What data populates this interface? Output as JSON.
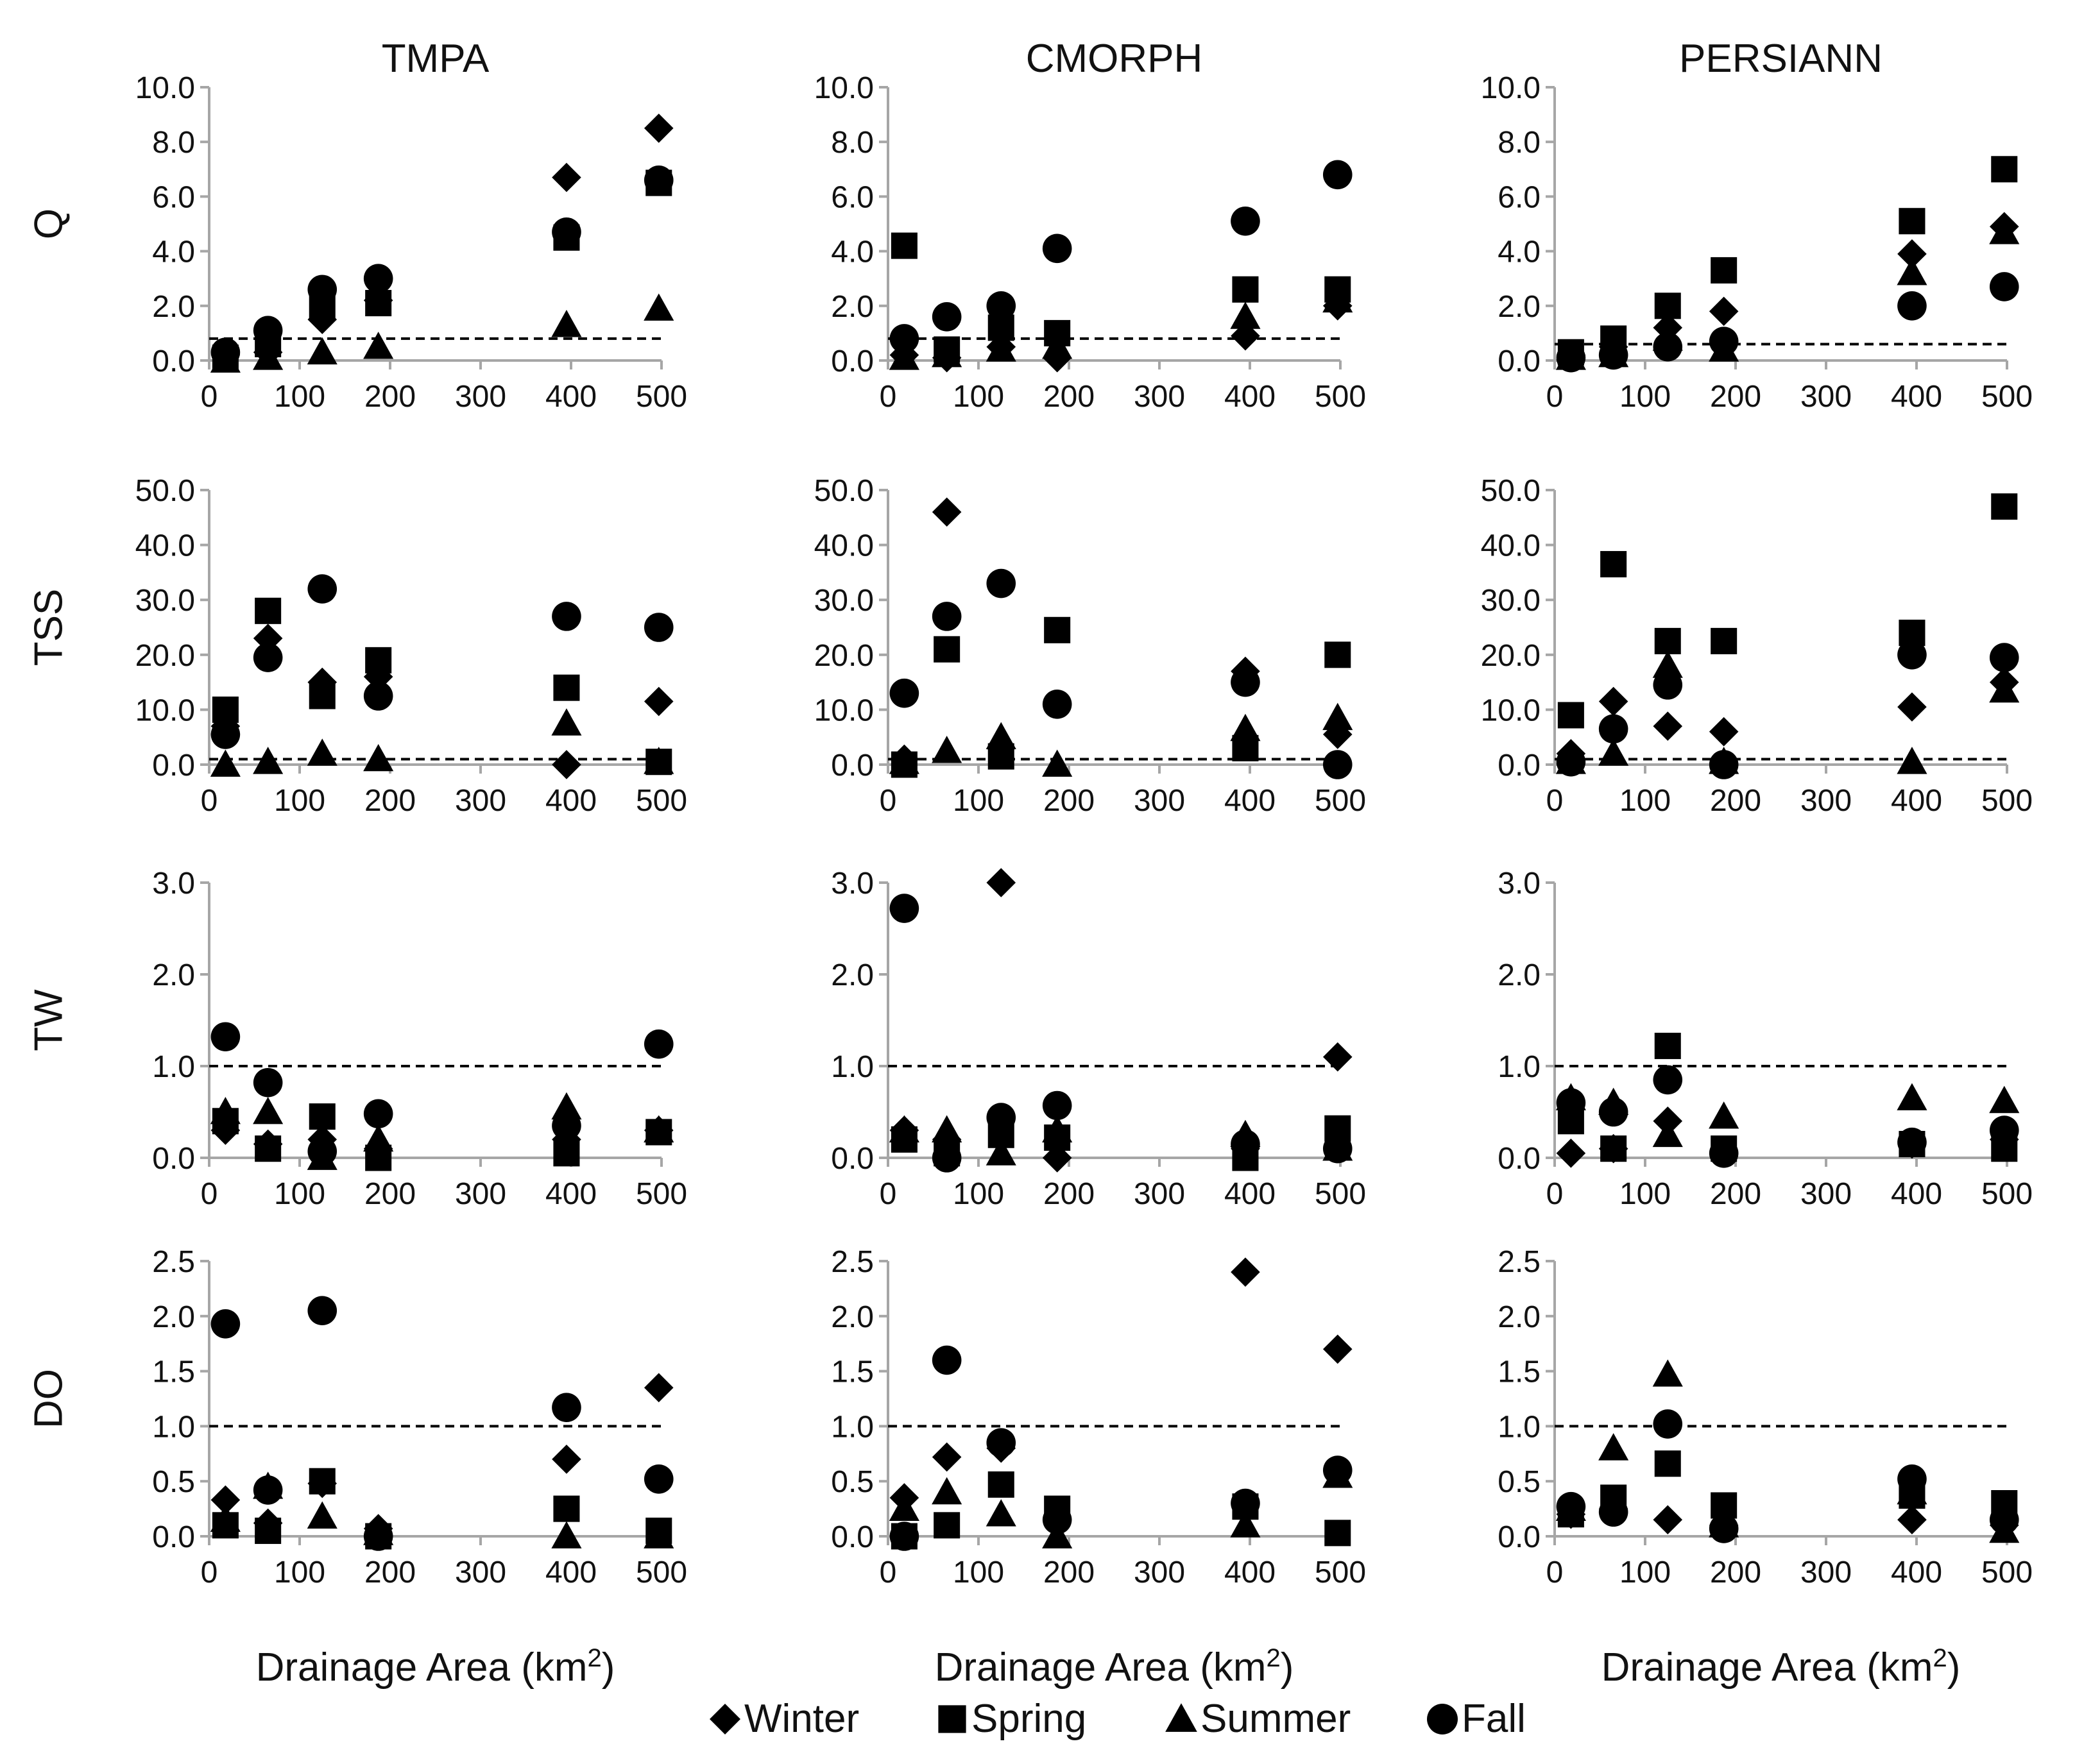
{
  "colors": {
    "axis": "#a6a6a6",
    "marker": "#000000",
    "reference": "#000000",
    "text": "#111111"
  },
  "legend": [
    {
      "season": "Winter",
      "label": "Winter",
      "marker": "diamond"
    },
    {
      "season": "Spring",
      "label": "Spring",
      "marker": "square"
    },
    {
      "season": "Summer",
      "label": "Summer",
      "marker": "triangle"
    },
    {
      "season": "Fall",
      "label": "Fall",
      "marker": "circle"
    }
  ],
  "columns": [
    "TMPA",
    "CMORPH",
    "PERSIANN"
  ],
  "rows": [
    "Q",
    "TSS",
    "TW",
    "DO"
  ],
  "xlabel": {
    "main": "Drainage Area (km",
    "sup": "2",
    "end": ")"
  },
  "chart_data": [
    {
      "id": "Q-TMPA",
      "type": "scatter",
      "title": "TMPA",
      "ylabel": "Q",
      "xlabel": "Drainage Area (km2)",
      "xlim": [
        0,
        500
      ],
      "ylim": [
        0,
        10
      ],
      "xticks": [
        "0",
        "100",
        "200",
        "300",
        "400",
        "500"
      ],
      "yticks": [
        "0.0",
        "2.0",
        "4.0",
        "6.0",
        "8.0",
        "10.0"
      ],
      "reference_line": 0.8,
      "x": [
        18,
        65,
        125,
        187,
        395,
        497
      ],
      "series": [
        {
          "name": "Winter",
          "values": [
            0.2,
            0.3,
            1.5,
            2.2,
            6.7,
            8.5
          ]
        },
        {
          "name": "Spring",
          "values": [
            0.1,
            0.6,
            2.0,
            2.1,
            4.5,
            6.5
          ]
        },
        {
          "name": "Summer",
          "values": [
            0.0,
            0.1,
            0.3,
            0.5,
            1.3,
            1.9
          ]
        },
        {
          "name": "Fall",
          "values": [
            0.3,
            1.1,
            2.6,
            3.0,
            4.7,
            6.6
          ]
        }
      ]
    },
    {
      "id": "Q-CMORPH",
      "type": "scatter",
      "title": "CMORPH",
      "ylabel": "",
      "xlabel": "Drainage Area (km2)",
      "xlim": [
        0,
        500
      ],
      "ylim": [
        0,
        10
      ],
      "xticks": [
        "0",
        "100",
        "200",
        "300",
        "400",
        "500"
      ],
      "yticks": [
        "0.0",
        "2.0",
        "4.0",
        "6.0",
        "8.0",
        "10.0"
      ],
      "reference_line": 0.8,
      "x": [
        18,
        65,
        125,
        187,
        395,
        497
      ],
      "series": [
        {
          "name": "Winter",
          "values": [
            0.2,
            0.1,
            0.5,
            0.1,
            0.9,
            2.0
          ]
        },
        {
          "name": "Spring",
          "values": [
            4.2,
            0.4,
            1.2,
            1.0,
            2.6,
            2.6
          ]
        },
        {
          "name": "Summer",
          "values": [
            0.1,
            0.2,
            0.4,
            0.5,
            1.6,
            2.2
          ]
        },
        {
          "name": "Fall",
          "values": [
            0.8,
            1.6,
            2.0,
            4.1,
            5.1,
            6.8
          ]
        }
      ]
    },
    {
      "id": "Q-PERSIANN",
      "type": "scatter",
      "title": "PERSIANN",
      "ylabel": "",
      "xlabel": "Drainage Area (km2)",
      "xlim": [
        0,
        500
      ],
      "ylim": [
        0,
        10
      ],
      "xticks": [
        "0",
        "100",
        "200",
        "300",
        "400",
        "500"
      ],
      "yticks": [
        "0.0",
        "2.0",
        "4.0",
        "6.0",
        "8.0",
        "10.0"
      ],
      "reference_line": 0.6,
      "x": [
        18,
        65,
        125,
        187,
        395,
        497
      ],
      "series": [
        {
          "name": "Winter",
          "values": [
            0.2,
            0.5,
            1.2,
            1.8,
            3.9,
            4.9
          ]
        },
        {
          "name": "Spring",
          "values": [
            0.3,
            0.8,
            2.0,
            3.3,
            5.1,
            7.0
          ]
        },
        {
          "name": "Summer",
          "values": [
            0.1,
            0.2,
            0.8,
            0.4,
            3.2,
            4.7
          ]
        },
        {
          "name": "Fall",
          "values": [
            0.1,
            0.2,
            0.5,
            0.7,
            2.0,
            2.7
          ]
        }
      ]
    },
    {
      "id": "TSS-TMPA",
      "type": "scatter",
      "title": "",
      "ylabel": "TSS",
      "xlabel": "Drainage Area (km2)",
      "xlim": [
        0,
        500
      ],
      "ylim": [
        0,
        50
      ],
      "xticks": [
        "0",
        "100",
        "200",
        "300",
        "400",
        "500"
      ],
      "yticks": [
        "0.0",
        "10.0",
        "20.0",
        "30.0",
        "40.0",
        "50.0"
      ],
      "reference_line": 1.0,
      "x": [
        18,
        65,
        125,
        187,
        395,
        497
      ],
      "series": [
        {
          "name": "Winter",
          "values": [
            7.0,
            23.0,
            15.0,
            16.0,
            0.0,
            11.5
          ]
        },
        {
          "name": "Spring",
          "values": [
            10.0,
            28.0,
            12.5,
            19.0,
            14.0,
            0.5
          ]
        },
        {
          "name": "Summer",
          "values": [
            0.0,
            0.5,
            2.0,
            1.0,
            7.5,
            0.5
          ]
        },
        {
          "name": "Fall",
          "values": [
            5.5,
            19.5,
            32.0,
            12.5,
            27.0,
            25.0
          ]
        }
      ]
    },
    {
      "id": "TSS-CMORPH",
      "type": "scatter",
      "title": "",
      "ylabel": "",
      "xlabel": "Drainage Area (km2)",
      "xlim": [
        0,
        500
      ],
      "ylim": [
        0,
        50
      ],
      "xticks": [
        "0",
        "100",
        "200",
        "300",
        "400",
        "500"
      ],
      "yticks": [
        "0.0",
        "10.0",
        "20.0",
        "30.0",
        "40.0",
        "50.0"
      ],
      "reference_line": 1.0,
      "x": [
        18,
        65,
        125,
        187,
        395,
        497
      ],
      "series": [
        {
          "name": "Winter",
          "values": [
            1.0,
            46.0,
            3.0,
            11.0,
            17.0,
            5.5
          ]
        },
        {
          "name": "Spring",
          "values": [
            0.0,
            21.0,
            1.5,
            24.5,
            3.0,
            20.0
          ]
        },
        {
          "name": "Summer",
          "values": [
            0.5,
            2.5,
            5.0,
            0.0,
            6.5,
            8.5
          ]
        },
        {
          "name": "Fall",
          "values": [
            13.0,
            27.0,
            33.0,
            11.0,
            15.0,
            0.0
          ]
        }
      ]
    },
    {
      "id": "TSS-PERSIANN",
      "type": "scatter",
      "title": "",
      "ylabel": "",
      "xlabel": "Drainage Area (km2)",
      "xlim": [
        0,
        500
      ],
      "ylim": [
        0,
        50
      ],
      "xticks": [
        "0",
        "100",
        "200",
        "300",
        "400",
        "500"
      ],
      "yticks": [
        "0.0",
        "10.0",
        "20.0",
        "30.0",
        "40.0",
        "50.0"
      ],
      "reference_line": 1.0,
      "x": [
        18,
        65,
        125,
        187,
        395,
        497
      ],
      "series": [
        {
          "name": "Winter",
          "values": [
            2.0,
            11.5,
            7.0,
            6.0,
            10.5,
            15.0
          ]
        },
        {
          "name": "Spring",
          "values": [
            9.0,
            36.5,
            22.5,
            22.5,
            24.0,
            47.0
          ]
        },
        {
          "name": "Summer",
          "values": [
            0.5,
            2.0,
            18.0,
            0.5,
            0.5,
            13.5
          ]
        },
        {
          "name": "Fall",
          "values": [
            0.5,
            6.5,
            14.5,
            0.0,
            20.0,
            19.5
          ]
        }
      ]
    },
    {
      "id": "TW-TMPA",
      "type": "scatter",
      "title": "",
      "ylabel": "TW",
      "xlabel": "Drainage Area (km2)",
      "xlim": [
        0,
        500
      ],
      "ylim": [
        0,
        3
      ],
      "xticks": [
        "0",
        "100",
        "200",
        "300",
        "400",
        "500"
      ],
      "yticks": [
        "0.0",
        "1.0",
        "2.0",
        "3.0"
      ],
      "reference_line": 1.0,
      "x": [
        18,
        65,
        125,
        187,
        395,
        497
      ],
      "series": [
        {
          "name": "Winter",
          "values": [
            0.3,
            0.15,
            0.2,
            0.1,
            0.2,
            0.3
          ]
        },
        {
          "name": "Spring",
          "values": [
            0.4,
            0.1,
            0.45,
            0.0,
            0.05,
            0.28
          ]
        },
        {
          "name": "Summer",
          "values": [
            0.5,
            0.5,
            0.0,
            0.2,
            0.55,
            0.3
          ]
        },
        {
          "name": "Fall",
          "values": [
            1.32,
            0.82,
            0.07,
            0.48,
            0.35,
            1.24
          ]
        }
      ]
    },
    {
      "id": "TW-CMORPH",
      "type": "scatter",
      "title": "",
      "ylabel": "",
      "xlabel": "Drainage Area (km2)",
      "xlim": [
        0,
        500
      ],
      "ylim": [
        0,
        3
      ],
      "xticks": [
        "0",
        "100",
        "200",
        "300",
        "400",
        "500"
      ],
      "yticks": [
        "0.0",
        "1.0",
        "2.0",
        "3.0"
      ],
      "reference_line": 1.0,
      "x": [
        18,
        65,
        125,
        187,
        395,
        497
      ],
      "series": [
        {
          "name": "Winter",
          "values": [
            0.3,
            0.2,
            3.0,
            0.0,
            0.1,
            1.1
          ]
        },
        {
          "name": "Spring",
          "values": [
            0.2,
            0.05,
            0.25,
            0.22,
            0.0,
            0.32
          ]
        },
        {
          "name": "Summer",
          "values": [
            0.3,
            0.3,
            0.05,
            0.3,
            0.25,
            0.1
          ]
        },
        {
          "name": "Fall",
          "values": [
            2.72,
            0.0,
            0.44,
            0.57,
            0.15,
            0.1
          ]
        }
      ]
    },
    {
      "id": "TW-PERSIANN",
      "type": "scatter",
      "title": "",
      "ylabel": "",
      "xlabel": "Drainage Area (km2)",
      "xlim": [
        0,
        500
      ],
      "ylim": [
        0,
        3
      ],
      "xticks": [
        "0",
        "100",
        "200",
        "300",
        "400",
        "500"
      ],
      "yticks": [
        "0.0",
        "1.0",
        "2.0",
        "3.0"
      ],
      "reference_line": 1.0,
      "x": [
        18,
        65,
        125,
        187,
        395,
        497
      ],
      "series": [
        {
          "name": "Winter",
          "values": [
            0.05,
            0.1,
            0.4,
            0.05,
            0.15,
            0.2
          ]
        },
        {
          "name": "Spring",
          "values": [
            0.4,
            0.1,
            1.22,
            0.1,
            0.15,
            0.1
          ]
        },
        {
          "name": "Summer",
          "values": [
            0.65,
            0.6,
            0.25,
            0.45,
            0.65,
            0.62
          ]
        },
        {
          "name": "Fall",
          "values": [
            0.6,
            0.5,
            0.85,
            0.05,
            0.17,
            0.3
          ]
        }
      ]
    },
    {
      "id": "DO-TMPA",
      "type": "scatter",
      "title": "",
      "ylabel": "DO",
      "xlabel": "Drainage Area (km2)",
      "xlim": [
        0,
        500
      ],
      "ylim": [
        0,
        2.5
      ],
      "xticks": [
        "0",
        "100",
        "200",
        "300",
        "400",
        "500"
      ],
      "yticks": [
        "0.0",
        "0.5",
        "1.0",
        "1.5",
        "2.0",
        "2.5"
      ],
      "reference_line": 1.0,
      "x": [
        18,
        65,
        125,
        187,
        395,
        497
      ],
      "series": [
        {
          "name": "Winter",
          "values": [
            0.33,
            0.12,
            0.48,
            0.07,
            0.7,
            1.35
          ]
        },
        {
          "name": "Spring",
          "values": [
            0.1,
            0.05,
            0.5,
            0.0,
            0.25,
            0.05
          ]
        },
        {
          "name": "Summer",
          "values": [
            0.15,
            0.45,
            0.18,
            0.03,
            0.0,
            0.0
          ]
        },
        {
          "name": "Fall",
          "values": [
            1.93,
            0.42,
            2.05,
            0.0,
            1.17,
            0.52
          ]
        }
      ]
    },
    {
      "id": "DO-CMORPH",
      "type": "scatter",
      "title": "",
      "ylabel": "",
      "xlabel": "Drainage Area (km2)",
      "xlim": [
        0,
        500
      ],
      "ylim": [
        0,
        2.5
      ],
      "xticks": [
        "0",
        "100",
        "200",
        "300",
        "400",
        "500"
      ],
      "yticks": [
        "0.0",
        "0.5",
        "1.0",
        "1.5",
        "2.0",
        "2.5"
      ],
      "reference_line": 1.0,
      "x": [
        18,
        65,
        125,
        187,
        395,
        497
      ],
      "series": [
        {
          "name": "Winter",
          "values": [
            0.35,
            0.72,
            0.8,
            0.15,
            2.4,
            1.7
          ]
        },
        {
          "name": "Spring",
          "values": [
            0.0,
            0.1,
            0.47,
            0.25,
            0.27,
            0.03
          ]
        },
        {
          "name": "Summer",
          "values": [
            0.25,
            0.4,
            0.2,
            0.0,
            0.1,
            0.55
          ]
        },
        {
          "name": "Fall",
          "values": [
            0.0,
            1.6,
            0.85,
            0.15,
            0.3,
            0.6
          ]
        }
      ]
    },
    {
      "id": "DO-PERSIANN",
      "type": "scatter",
      "title": "",
      "ylabel": "",
      "xlabel": "Drainage Area (km2)",
      "xlim": [
        0,
        500
      ],
      "ylim": [
        0,
        2.5
      ],
      "xticks": [
        "0",
        "100",
        "200",
        "300",
        "400",
        "500"
      ],
      "yticks": [
        "0.0",
        "0.5",
        "1.0",
        "1.5",
        "2.0",
        "2.5"
      ],
      "reference_line": 1.0,
      "x": [
        18,
        65,
        125,
        187,
        395,
        497
      ],
      "series": [
        {
          "name": "Winter",
          "values": [
            0.2,
            0.25,
            0.15,
            0.1,
            0.15,
            0.1
          ]
        },
        {
          "name": "Spring",
          "values": [
            0.2,
            0.35,
            0.66,
            0.28,
            0.37,
            0.3
          ]
        },
        {
          "name": "Summer",
          "values": [
            0.25,
            0.8,
            1.47,
            0.1,
            0.4,
            0.05
          ]
        },
        {
          "name": "Fall",
          "values": [
            0.27,
            0.22,
            1.02,
            0.07,
            0.52,
            0.15
          ]
        }
      ]
    }
  ]
}
